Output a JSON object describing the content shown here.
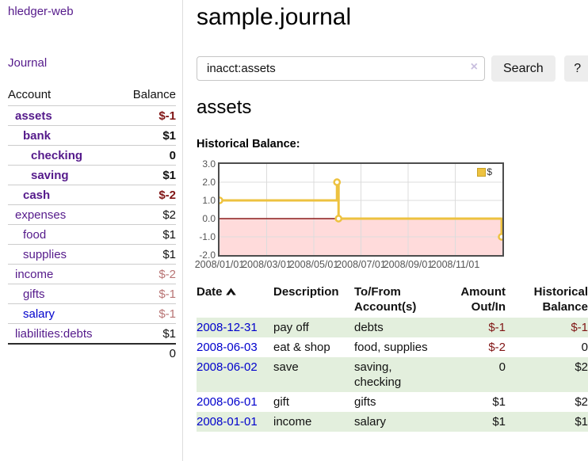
{
  "colors": {
    "accent_purple": "#551a8b",
    "link_blue": "#0000cc",
    "negative_red": "#801515",
    "negative_dim_red": "#b87474",
    "chart_gold": "#edc240",
    "negative_region_pink": "#ffdbdb",
    "zero_line_red": "#8b1c1c",
    "row_green": "#e3efdd"
  },
  "sidebar": {
    "app_title": "hledger-web",
    "nav": {
      "journal_label": "Journal"
    },
    "accounts_header": {
      "account": "Account",
      "balance": "Balance"
    },
    "accounts": [
      {
        "name": "assets",
        "depth": 1,
        "emphasized": true,
        "balance": "$-1",
        "negative": true,
        "dimmed": false,
        "blue_link": false
      },
      {
        "name": "bank",
        "depth": 2,
        "emphasized": true,
        "balance": "$1",
        "negative": false,
        "dimmed": false,
        "blue_link": false
      },
      {
        "name": "checking",
        "depth": 3,
        "emphasized": true,
        "balance": "0",
        "negative": false,
        "dimmed": false,
        "blue_link": false
      },
      {
        "name": "saving",
        "depth": 3,
        "emphasized": true,
        "balance": "$1",
        "negative": false,
        "dimmed": false,
        "blue_link": false
      },
      {
        "name": "cash",
        "depth": 2,
        "emphasized": true,
        "balance": "$-2",
        "negative": true,
        "dimmed": false,
        "blue_link": false
      },
      {
        "name": "expenses",
        "depth": 1,
        "emphasized": false,
        "balance": "$2",
        "negative": false,
        "dimmed": false,
        "blue_link": false
      },
      {
        "name": "food",
        "depth": 2,
        "emphasized": false,
        "balance": "$1",
        "negative": false,
        "dimmed": false,
        "blue_link": false
      },
      {
        "name": "supplies",
        "depth": 2,
        "emphasized": false,
        "balance": "$1",
        "negative": false,
        "dimmed": false,
        "blue_link": false
      },
      {
        "name": "income",
        "depth": 1,
        "emphasized": false,
        "balance": "$-2",
        "negative": true,
        "dimmed": true,
        "blue_link": false
      },
      {
        "name": "gifts",
        "depth": 2,
        "emphasized": false,
        "balance": "$-1",
        "negative": true,
        "dimmed": true,
        "blue_link": false
      },
      {
        "name": "salary",
        "depth": 2,
        "emphasized": false,
        "balance": "$-1",
        "negative": true,
        "dimmed": true,
        "blue_link": true
      },
      {
        "name": "liabilities:debts",
        "depth": 1,
        "emphasized": false,
        "balance": "$1",
        "negative": false,
        "dimmed": false,
        "blue_link": false
      }
    ],
    "total": "0"
  },
  "header": {
    "title": "sample.journal"
  },
  "search": {
    "value": "inacct:assets",
    "clear_icon": "×",
    "button_label": "Search",
    "help_label": "?"
  },
  "account_page": {
    "heading": "assets",
    "chart_label": "Historical Balance:"
  },
  "chart_data": {
    "type": "line",
    "title": "Historical Balance:",
    "step": true,
    "ylim": [
      -2,
      3
    ],
    "yticks": [
      "3.0",
      "2.0",
      "1.0",
      "0.0",
      "-1.0",
      "-2.0"
    ],
    "ytick_values": [
      3,
      2,
      1,
      0,
      -1,
      -2
    ],
    "xticks": [
      "2008/01/01",
      "2008/03/01",
      "2008/05/01",
      "2008/07/01",
      "2008/09/01",
      "2008/11/01"
    ],
    "x_range": [
      "2008-01-01",
      "2009-01-01"
    ],
    "grid": true,
    "legend_position": "top-right",
    "series": [
      {
        "name": "$",
        "color": "#edc240",
        "points": [
          {
            "date": "2008-01-01",
            "x_frac": 0.0,
            "value": 1
          },
          {
            "date": "2008-06-01",
            "x_frac": 0.4153,
            "value": 2
          },
          {
            "date": "2008-06-03",
            "x_frac": 0.4208,
            "value": 0
          },
          {
            "date": "2008-12-31",
            "x_frac": 0.9973,
            "value": -1
          }
        ]
      }
    ],
    "negative_region_shaded": true
  },
  "transactions": {
    "headers": [
      "Date",
      "Description",
      "To/From Account(s)",
      "Amount Out/In",
      "Historical Balance"
    ],
    "sort": {
      "column": "Date",
      "direction": "ascending"
    },
    "rows": [
      {
        "date": "2008-12-31",
        "description": "pay off",
        "accounts": "debts",
        "amount": "$-1",
        "amount_negative": true,
        "balance": "$-1",
        "balance_negative": true,
        "shaded": true
      },
      {
        "date": "2008-06-03",
        "description": "eat & shop",
        "accounts": "food, supplies",
        "amount": "$-2",
        "amount_negative": true,
        "balance": "0",
        "balance_negative": false,
        "shaded": false
      },
      {
        "date": "2008-06-02",
        "description": "save",
        "accounts": "saving, checking",
        "amount": "0",
        "amount_negative": false,
        "balance": "$2",
        "balance_negative": false,
        "shaded": true
      },
      {
        "date": "2008-06-01",
        "description": "gift",
        "accounts": "gifts",
        "amount": "$1",
        "amount_negative": false,
        "balance": "$2",
        "balance_negative": false,
        "shaded": false
      },
      {
        "date": "2008-01-01",
        "description": "income",
        "accounts": "salary",
        "amount": "$1",
        "amount_negative": false,
        "balance": "$1",
        "balance_negative": false,
        "shaded": true
      }
    ]
  }
}
